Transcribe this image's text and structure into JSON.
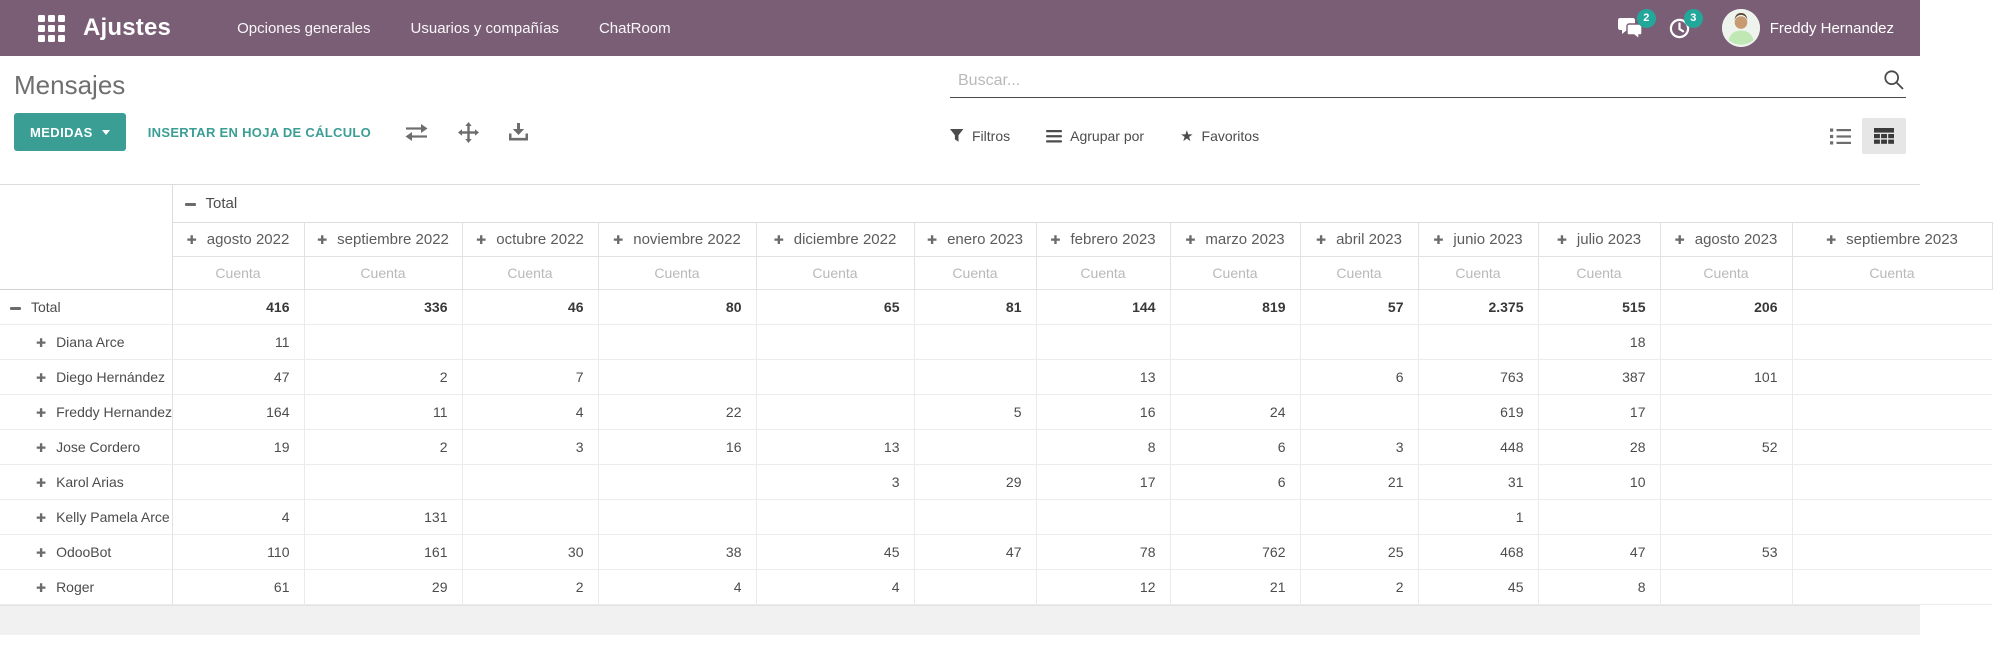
{
  "navbar": {
    "app_title": "Ajustes",
    "menu_items": [
      "Opciones generales",
      "Usuarios y compañías",
      "ChatRoom"
    ],
    "messages_badge": "2",
    "activities_badge": "3",
    "user_name": "Freddy Hernandez"
  },
  "control_panel": {
    "title": "Mensajes",
    "measures_button": "MEDIDAS",
    "insert_spreadsheet_button": "INSERTAR EN HOJA DE CÁLCULO",
    "search": {
      "placeholder": "Buscar..."
    },
    "filters_button": "Filtros",
    "group_by_button": "Agrupar por",
    "favorites_button": "Favoritos"
  },
  "pivot": {
    "column_root_label": "Total",
    "measure_label": "Cuenta",
    "column_headers": [
      "agosto 2022",
      "septiembre 2022",
      "octubre 2022",
      "noviembre 2022",
      "diciembre 2022",
      "enero 2023",
      "febrero 2023",
      "marzo 2023",
      "abril 2023",
      "junio 2023",
      "julio 2023",
      "agosto 2023",
      "septiembre 2023"
    ],
    "rows": [
      {
        "label": "Total",
        "type": "total",
        "values": [
          "416",
          "336",
          "46",
          "80",
          "65",
          "81",
          "144",
          "819",
          "57",
          "2.375",
          "515",
          "206",
          ""
        ]
      },
      {
        "label": "Diana Arce",
        "type": "user",
        "values": [
          "11",
          "",
          "",
          "",
          "",
          "",
          "",
          "",
          "",
          "",
          "18",
          "",
          ""
        ]
      },
      {
        "label": "Diego Hernández",
        "type": "user",
        "values": [
          "47",
          "2",
          "7",
          "",
          "",
          "",
          "13",
          "",
          "6",
          "763",
          "387",
          "101",
          ""
        ]
      },
      {
        "label": "Freddy Hernandez",
        "type": "user",
        "values": [
          "164",
          "11",
          "4",
          "22",
          "",
          "5",
          "16",
          "24",
          "",
          "619",
          "17",
          "",
          ""
        ]
      },
      {
        "label": "Jose Cordero",
        "type": "user",
        "values": [
          "19",
          "2",
          "3",
          "16",
          "13",
          "",
          "8",
          "6",
          "3",
          "448",
          "28",
          "52",
          ""
        ]
      },
      {
        "label": "Karol Arias",
        "type": "user",
        "values": [
          "",
          "",
          "",
          "",
          "3",
          "29",
          "17",
          "6",
          "21",
          "31",
          "10",
          "",
          ""
        ]
      },
      {
        "label": "Kelly Pamela Arce",
        "type": "user",
        "values": [
          "4",
          "131",
          "",
          "",
          "",
          "",
          "",
          "",
          "",
          "1",
          "",
          "",
          ""
        ]
      },
      {
        "label": "OdooBot",
        "type": "user",
        "values": [
          "110",
          "161",
          "30",
          "38",
          "45",
          "47",
          "78",
          "762",
          "25",
          "468",
          "47",
          "53",
          ""
        ]
      },
      {
        "label": "Roger",
        "type": "user",
        "values": [
          "61",
          "29",
          "2",
          "4",
          "4",
          "",
          "12",
          "21",
          "2",
          "45",
          "8",
          "",
          ""
        ]
      }
    ]
  },
  "colors": {
    "navbar_bg": "#7a5e76",
    "accent_teal": "#3a9e94",
    "badge_teal": "#24a79b"
  }
}
